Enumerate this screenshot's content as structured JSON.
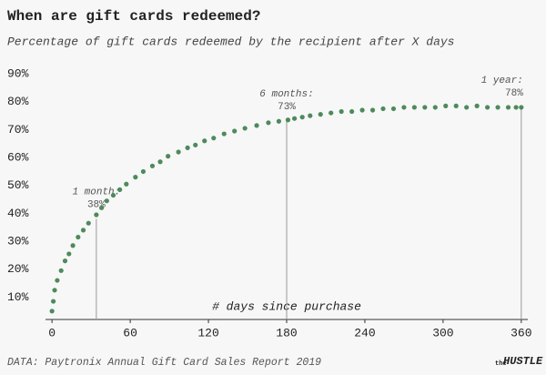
{
  "chart_data": {
    "type": "scatter",
    "title": "When are gift cards redeemed?",
    "subtitle": "Percentage of gift cards redeemed by the recipient after X days",
    "x_label": "# days since purchase",
    "source": "DATA: Paytronix Annual Gift Card Sales Report 2019",
    "logo": {
      "small": "the",
      "big": "HUSTLE"
    },
    "color": "#4e8a5c",
    "x": [
      0,
      1,
      2,
      4,
      7,
      10,
      13,
      16,
      20,
      24,
      28,
      34,
      38,
      42,
      47,
      52,
      57,
      64,
      70,
      77,
      83,
      89,
      97,
      104,
      110,
      117,
      124,
      132,
      140,
      148,
      157,
      166,
      174,
      181,
      186,
      192,
      198,
      206,
      214,
      222,
      230,
      238,
      246,
      254,
      262,
      270,
      278,
      286,
      294,
      302,
      310,
      318,
      326,
      334,
      342,
      350,
      356,
      360
    ],
    "values": [
      5,
      8.5,
      12.5,
      16,
      19.5,
      23,
      25.5,
      28.5,
      31.5,
      34,
      36.5,
      39.5,
      42,
      44.5,
      46.5,
      48.5,
      50.5,
      53,
      55,
      57,
      58.5,
      60.5,
      62,
      63.5,
      64.5,
      66,
      67,
      68.5,
      69.5,
      70.5,
      71.5,
      72.5,
      73,
      73.5,
      74,
      74.5,
      75,
      75.5,
      76,
      76.5,
      76.5,
      77,
      77,
      77.5,
      77.5,
      78,
      78,
      78,
      78,
      78.5,
      78.5,
      78,
      78.5,
      78,
      78,
      78,
      78,
      78
    ],
    "xlim": [
      -5,
      365
    ],
    "ylim": [
      2,
      92
    ],
    "xticks": [
      0,
      60,
      120,
      180,
      240,
      300,
      360
    ],
    "yticks": [
      {
        "value": 10,
        "label": "10%"
      },
      {
        "value": 20,
        "label": "20%"
      },
      {
        "value": 30,
        "label": "30%"
      },
      {
        "value": 40,
        "label": "40%"
      },
      {
        "value": 50,
        "label": "50%"
      },
      {
        "value": 60,
        "label": "60%"
      },
      {
        "value": 70,
        "label": "70%"
      },
      {
        "value": 80,
        "label": "80%"
      },
      {
        "value": 90,
        "label": "90%"
      }
    ],
    "annotations": [
      {
        "x": 34,
        "label": "1 month:",
        "value": 38,
        "value_label": "38%"
      },
      {
        "x": 180,
        "label": "6 months:",
        "value": 73,
        "value_label": "73%"
      },
      {
        "x": 360,
        "label": "1 year:",
        "value": 78,
        "value_label": "78%"
      }
    ]
  }
}
